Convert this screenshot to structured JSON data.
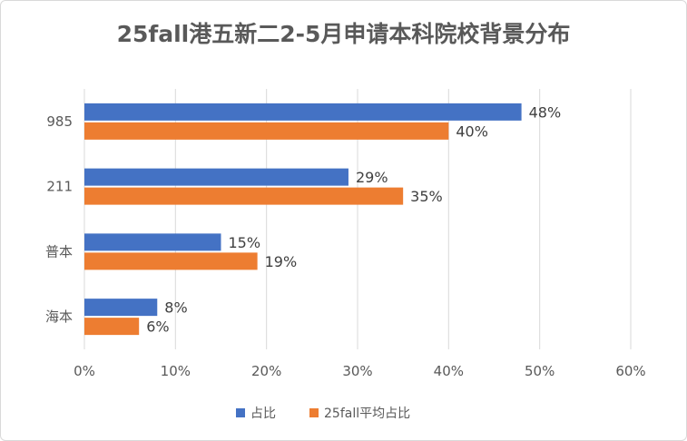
{
  "title": "25fall港五新二2-5月申请本科院校背景分布",
  "colors": {
    "series1": "#4472C4",
    "series2": "#ED7D31"
  },
  "chart_data": {
    "type": "bar",
    "orientation": "horizontal",
    "categories": [
      "985",
      "211",
      "普本",
      "海本"
    ],
    "series": [
      {
        "name": "占比",
        "values": [
          48,
          29,
          15,
          8
        ]
      },
      {
        "name": "25fall平均占比",
        "values": [
          40,
          35,
          19,
          6
        ]
      }
    ],
    "value_suffix": "%",
    "xlim": [
      0,
      60
    ],
    "xticks": [
      0,
      10,
      20,
      30,
      40,
      50,
      60
    ],
    "grid": true,
    "legend_position": "bottom"
  }
}
